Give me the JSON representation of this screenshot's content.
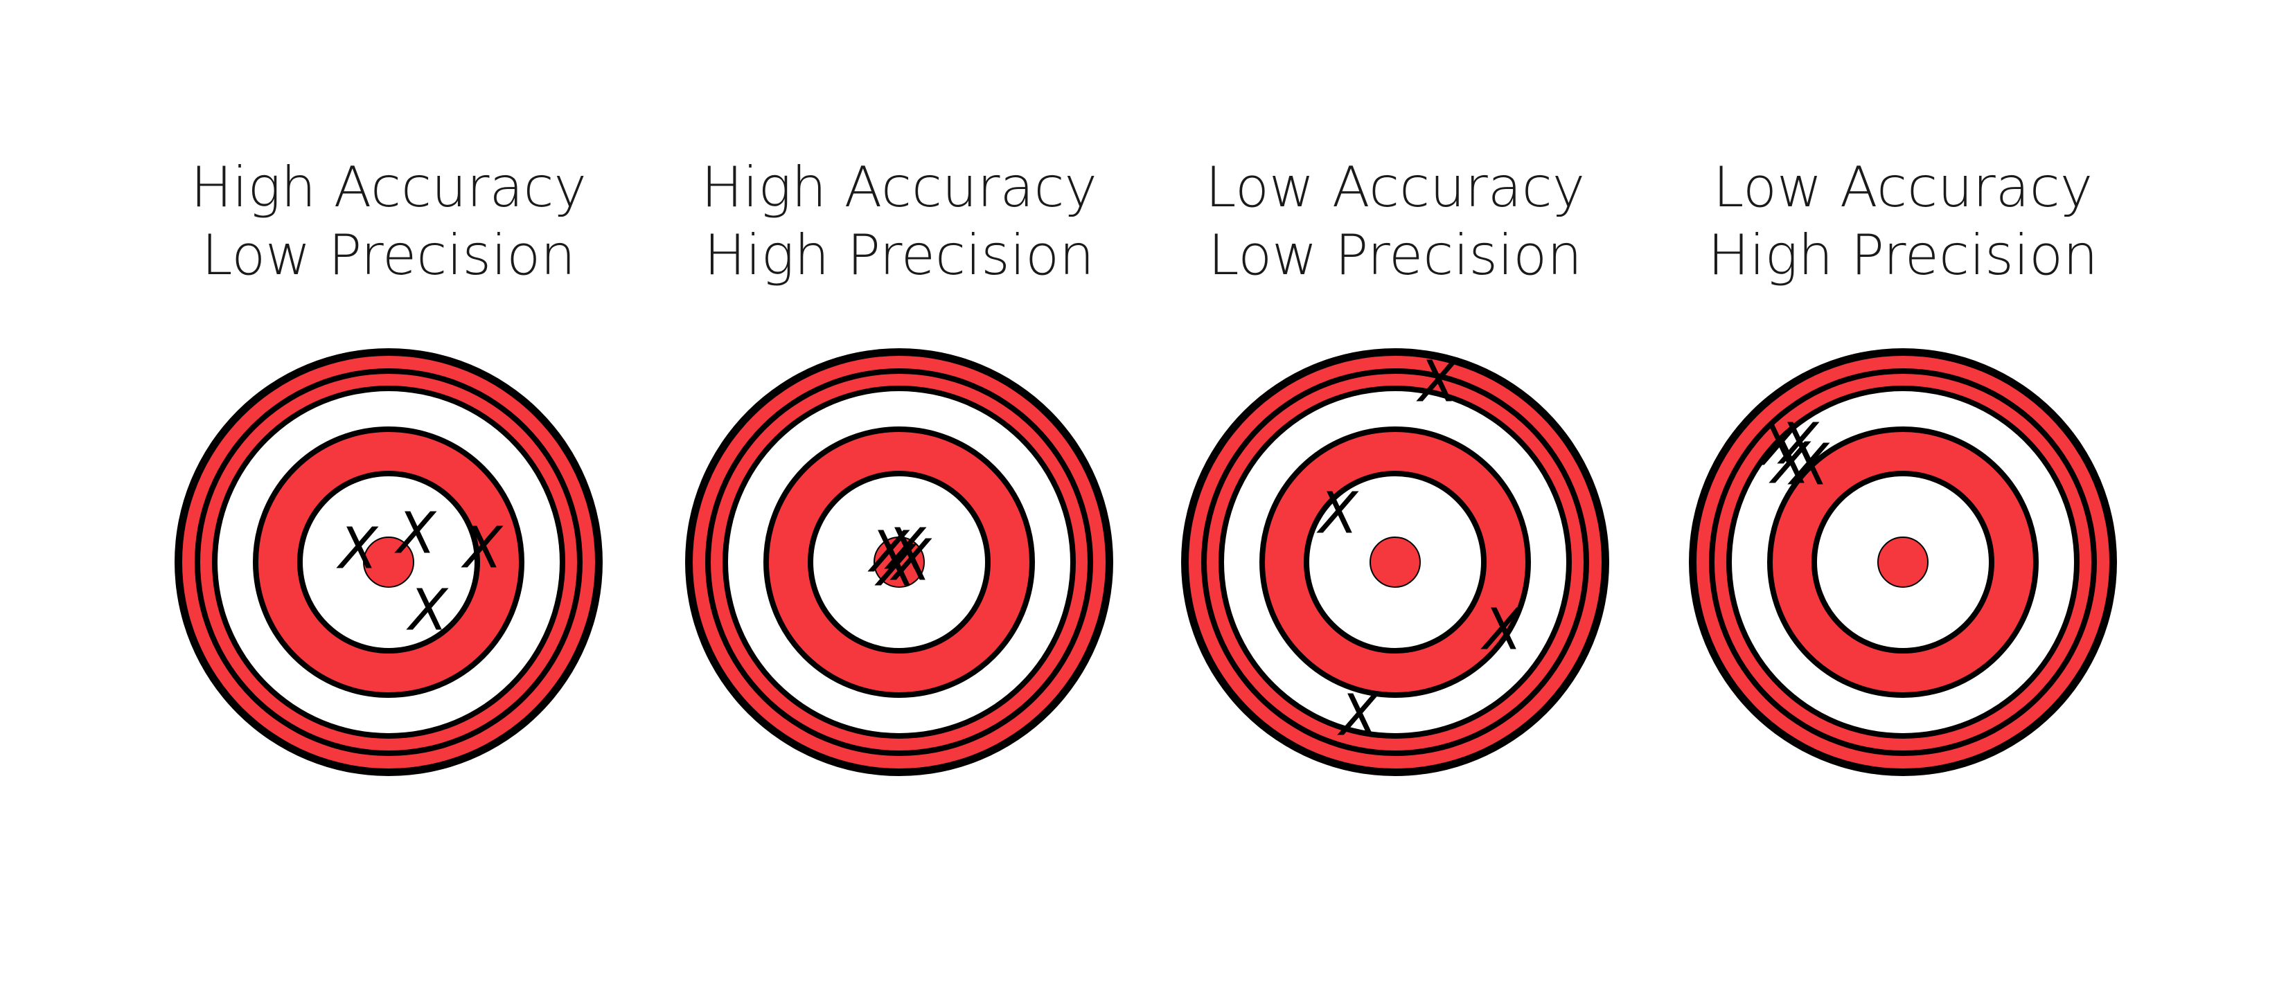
{
  "colors": {
    "ring_red": "#f5383e",
    "ring_white": "#ffffff",
    "outline": "#000000"
  },
  "marker_symbol": "X",
  "panels": [
    {
      "accuracy_label": "High Accuracy",
      "precision_label": "Low Precision"
    },
    {
      "accuracy_label": "High Accuracy",
      "precision_label": "High Precision"
    },
    {
      "accuracy_label": "Low Accuracy",
      "precision_label": "Low Precision"
    },
    {
      "accuracy_label": "Low Accuracy",
      "precision_label": "High Precision"
    }
  ]
}
